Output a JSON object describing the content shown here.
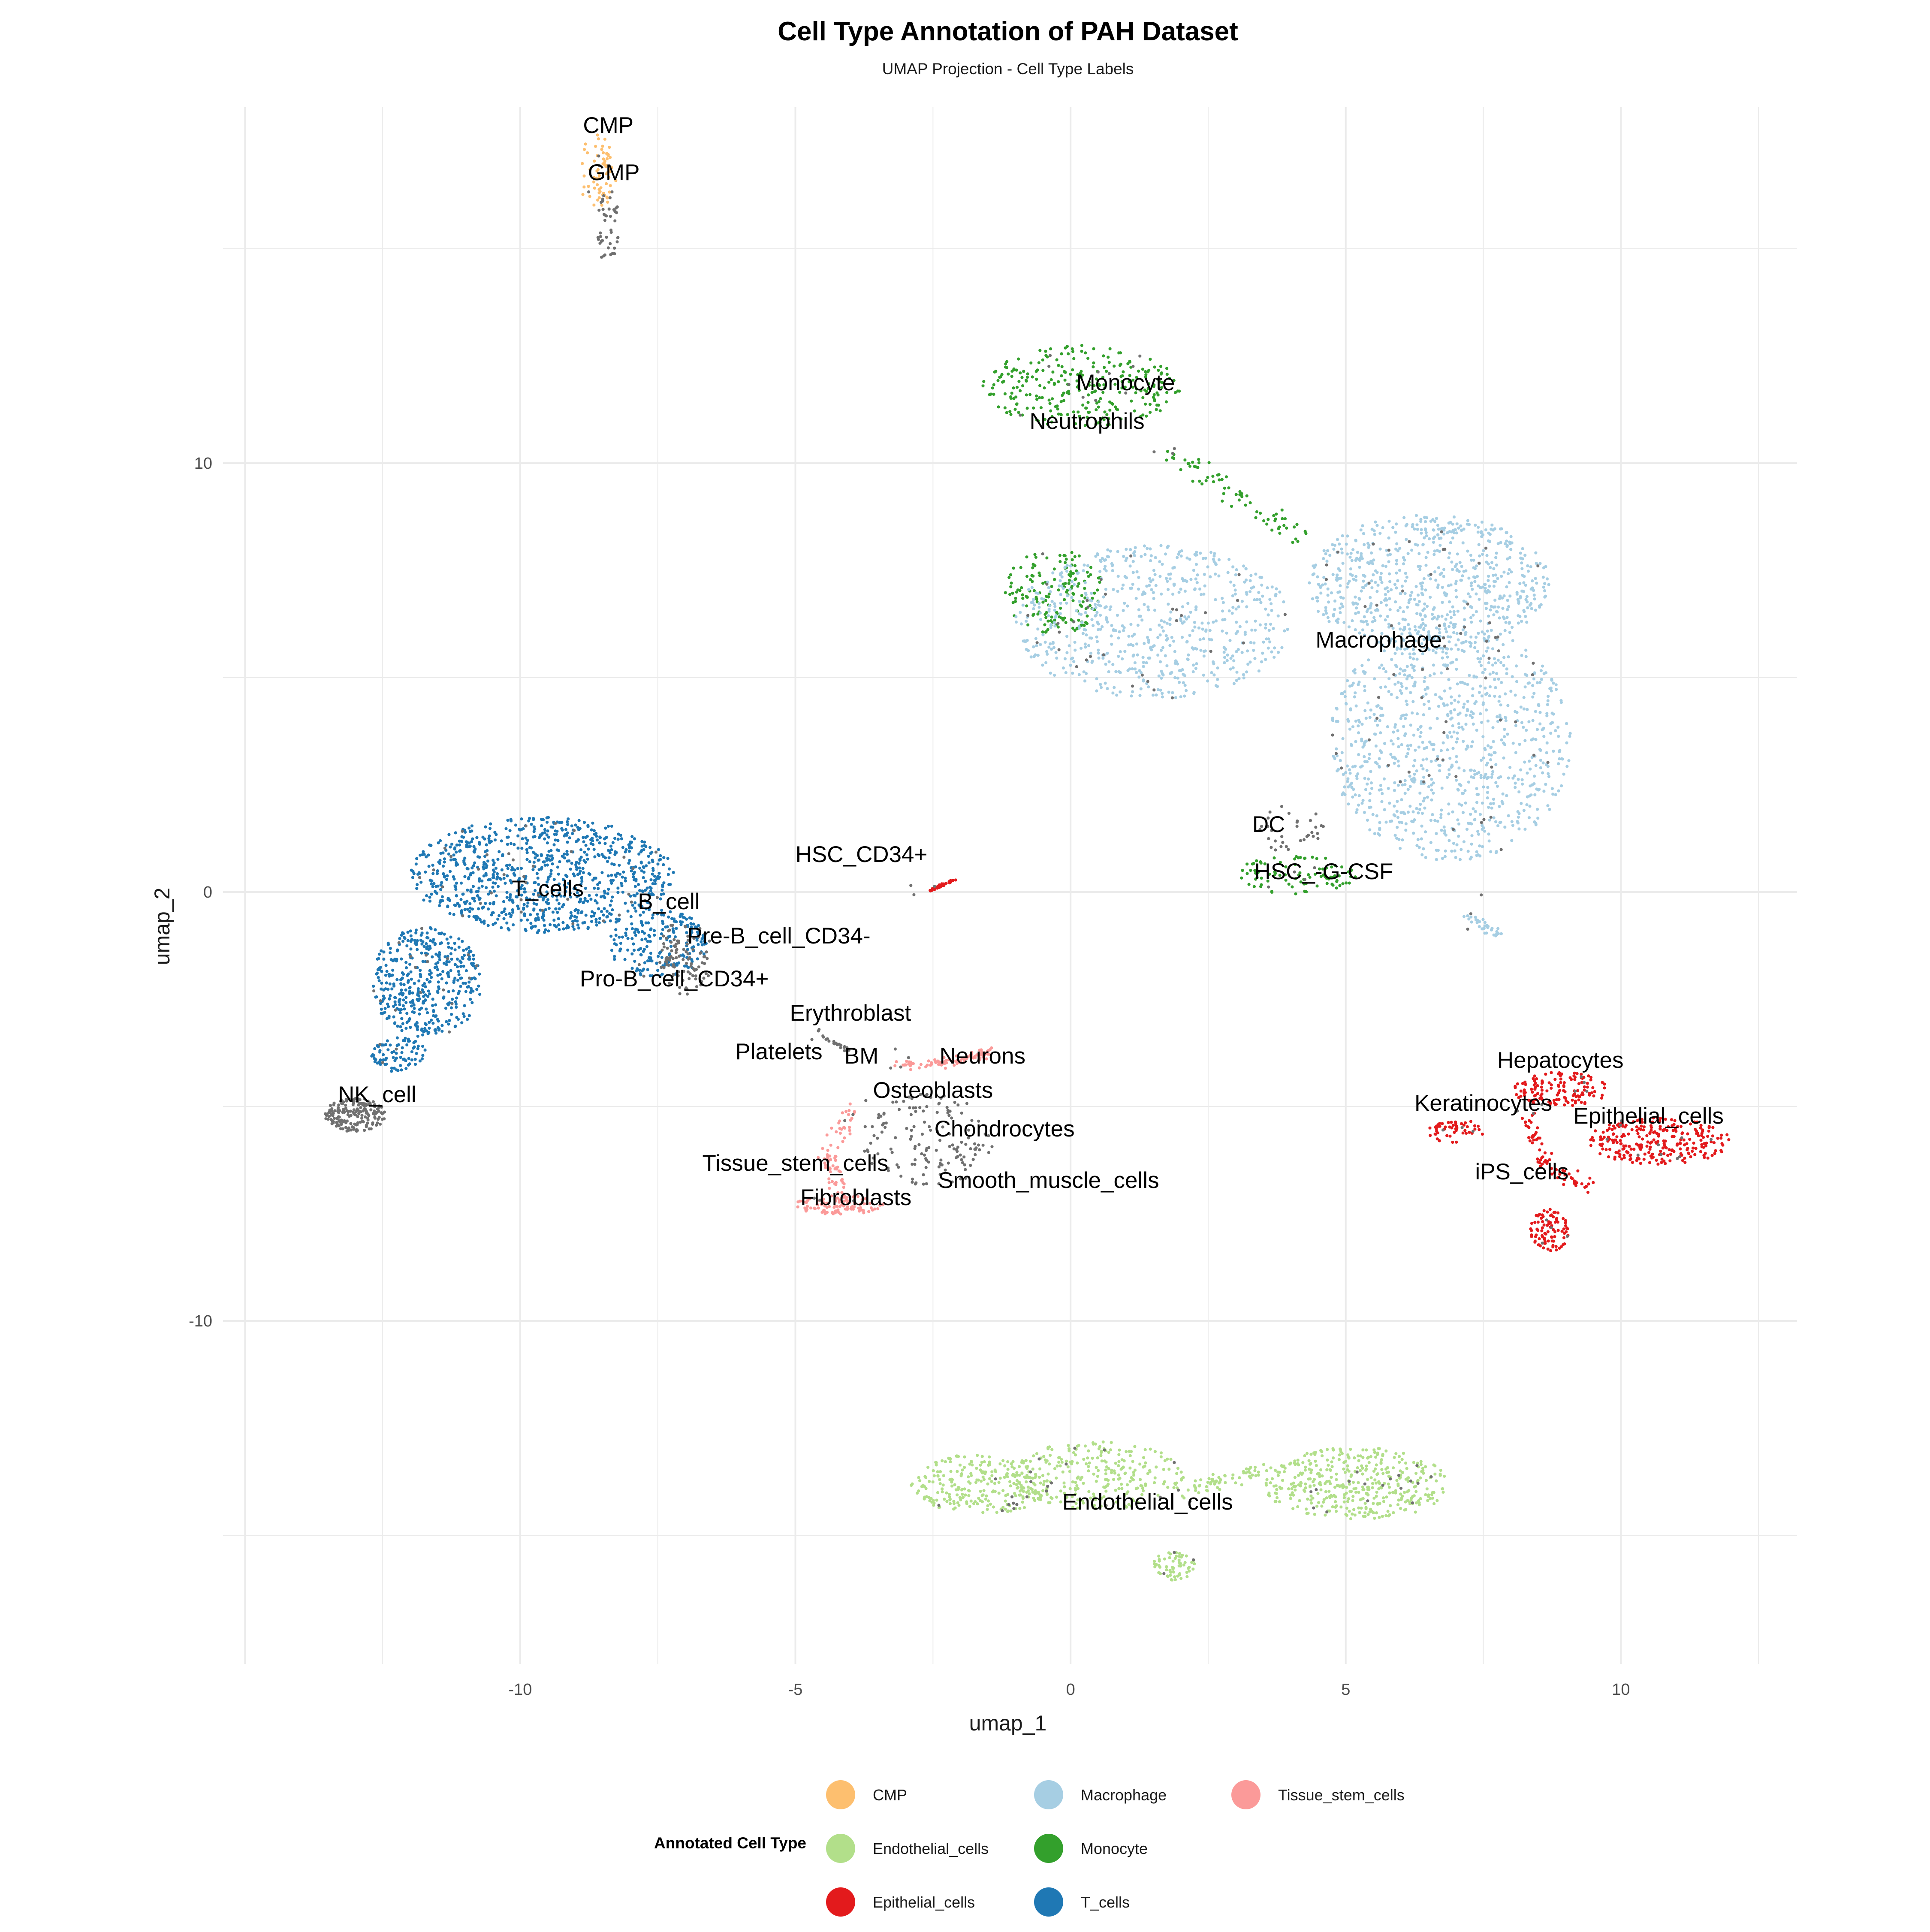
{
  "chart_data": {
    "type": "scatter",
    "title": "Cell Type Annotation of PAH Dataset",
    "subtitle": "UMAP Projection - Cell Type Labels",
    "xlabel": "umap_1",
    "ylabel": "umap_2",
    "xlim": [
      -15.4,
      13.2
    ],
    "ylim": [
      -18.0,
      18.3
    ],
    "x_ticks": [
      -10,
      -5,
      0,
      5,
      10
    ],
    "y_ticks": [
      -10,
      0,
      10
    ],
    "grid": true,
    "legend_title": "Annotated Cell Type",
    "legend_position": "bottom",
    "legend": [
      {
        "label": "CMP",
        "color": "#FDBF6F"
      },
      {
        "label": "Endothelial_cells",
        "color": "#B2DF8A"
      },
      {
        "label": "Epithelial_cells",
        "color": "#E31A1C"
      },
      {
        "label": "Macrophage",
        "color": "#A6CEE3"
      },
      {
        "label": "Monocyte",
        "color": "#33A02C"
      },
      {
        "label": "T_cells",
        "color": "#1F78B4"
      },
      {
        "label": "Tissue_stem_cells",
        "color": "#FB9A99"
      }
    ],
    "other_color": "#707070",
    "clusters": [
      {
        "color": "#FDBF6F",
        "shape": "ellipse",
        "center": [
          -8.6,
          16.8
        ],
        "radius": [
          0.35,
          0.9
        ],
        "n": 70
      },
      {
        "color": "#707070",
        "shape": "ellipse",
        "center": [
          -8.4,
          15.5
        ],
        "radius": [
          0.2,
          0.9
        ],
        "n": 40
      },
      {
        "color": "#33A02C",
        "shape": "ellipse",
        "center": [
          0.2,
          11.8
        ],
        "radius": [
          1.8,
          0.95
        ],
        "n": 280
      },
      {
        "color": "#33A02C",
        "shape": "path",
        "points": [
          [
            1.8,
            10.2
          ],
          [
            3.2,
            9.2
          ],
          [
            4.2,
            8.2
          ]
        ],
        "spread": 0.25,
        "n": 70
      },
      {
        "color": "#33A02C",
        "shape": "ellipse",
        "center": [
          -0.3,
          7.0
        ],
        "radius": [
          0.9,
          1.0
        ],
        "n": 160
      },
      {
        "color": "#A6CEE3",
        "shape": "ellipse",
        "center": [
          1.5,
          6.3
        ],
        "radius": [
          2.5,
          1.8
        ],
        "n": 650
      },
      {
        "color": "#A6CEE3",
        "shape": "ellipse",
        "center": [
          6.5,
          7.2
        ],
        "radius": [
          2.2,
          1.6
        ],
        "n": 700
      },
      {
        "color": "#A6CEE3",
        "shape": "ellipse",
        "center": [
          6.9,
          3.5
        ],
        "radius": [
          2.2,
          2.8
        ],
        "n": 900
      },
      {
        "color": "#A6CEE3",
        "shape": "path",
        "points": [
          [
            7.2,
            -0.5
          ],
          [
            7.8,
            -1.0
          ]
        ],
        "spread": 0.12,
        "n": 35
      },
      {
        "color": "#33A02C",
        "shape": "ellipse",
        "center": [
          4.1,
          0.4
        ],
        "radius": [
          1.1,
          0.45
        ],
        "n": 90
      },
      {
        "color": "#707070",
        "shape": "ellipse",
        "center": [
          4.0,
          1.5
        ],
        "radius": [
          0.6,
          0.6
        ],
        "n": 30
      },
      {
        "color": "#1F78B4",
        "shape": "ellipse",
        "center": [
          -9.6,
          0.4
        ],
        "radius": [
          2.4,
          1.35
        ],
        "n": 900
      },
      {
        "color": "#1F78B4",
        "shape": "ellipse",
        "center": [
          -11.7,
          -2.1
        ],
        "radius": [
          1.0,
          1.3
        ],
        "n": 420
      },
      {
        "color": "#1F78B4",
        "shape": "ellipse",
        "center": [
          -7.5,
          -1.2
        ],
        "radius": [
          0.9,
          0.8
        ],
        "n": 200
      },
      {
        "color": "#1F78B4",
        "shape": "ellipse",
        "center": [
          -12.2,
          -3.8
        ],
        "radius": [
          0.5,
          0.4
        ],
        "n": 80
      },
      {
        "color": "#707070",
        "shape": "ellipse",
        "center": [
          -13.0,
          -5.2
        ],
        "radius": [
          0.55,
          0.4
        ],
        "n": 170
      },
      {
        "color": "#707070",
        "shape": "ellipse",
        "center": [
          -7.0,
          -1.5
        ],
        "radius": [
          0.5,
          0.9
        ],
        "n": 90
      },
      {
        "color": "#E31A1C",
        "shape": "path",
        "points": [
          [
            -2.6,
            0.0
          ],
          [
            -2.1,
            0.3
          ]
        ],
        "spread": 0.03,
        "n": 45
      },
      {
        "color": "#FB9A99",
        "shape": "path",
        "points": [
          [
            -3.1,
            -4.0
          ],
          [
            -2.2,
            -4.0
          ],
          [
            -1.4,
            -3.7
          ]
        ],
        "spread": 0.12,
        "n": 90
      },
      {
        "color": "#FB9A99",
        "shape": "ellipse",
        "center": [
          -4.2,
          -7.3
        ],
        "radius": [
          0.8,
          0.22
        ],
        "n": 110
      },
      {
        "color": "#FB9A99",
        "shape": "path",
        "points": [
          [
            -3.9,
            -5.0
          ],
          [
            -4.4,
            -6.2
          ],
          [
            -4.2,
            -7.0
          ]
        ],
        "spread": 0.18,
        "n": 70
      },
      {
        "color": "#707070",
        "shape": "ellipse",
        "center": [
          -2.6,
          -5.8
        ],
        "radius": [
          1.2,
          1.1
        ],
        "n": 140
      },
      {
        "color": "#707070",
        "shape": "path",
        "points": [
          [
            -4.6,
            -3.3
          ],
          [
            -4.0,
            -3.7
          ]
        ],
        "spread": 0.05,
        "n": 20
      },
      {
        "color": "#E31A1C",
        "shape": "ellipse",
        "center": [
          8.9,
          -4.6
        ],
        "radius": [
          0.9,
          0.4
        ],
        "n": 130
      },
      {
        "color": "#E31A1C",
        "shape": "ellipse",
        "center": [
          10.7,
          -5.8
        ],
        "radius": [
          1.3,
          0.55
        ],
        "n": 260
      },
      {
        "color": "#E31A1C",
        "shape": "ellipse",
        "center": [
          7.0,
          -5.6
        ],
        "radius": [
          0.5,
          0.3
        ],
        "n": 50
      },
      {
        "color": "#E31A1C",
        "shape": "ellipse",
        "center": [
          8.7,
          -7.9
        ],
        "radius": [
          0.35,
          0.5
        ],
        "n": 90
      },
      {
        "color": "#E31A1C",
        "shape": "path",
        "points": [
          [
            8.3,
            -5.2
          ],
          [
            8.6,
            -6.3
          ],
          [
            9.4,
            -6.9
          ]
        ],
        "spread": 0.18,
        "n": 70
      },
      {
        "color": "#B2DF8A",
        "shape": "ellipse",
        "center": [
          -1.6,
          -13.8
        ],
        "radius": [
          1.3,
          0.7
        ],
        "n": 260
      },
      {
        "color": "#B2DF8A",
        "shape": "ellipse",
        "center": [
          0.5,
          -13.6
        ],
        "radius": [
          1.6,
          0.8
        ],
        "n": 260
      },
      {
        "color": "#B2DF8A",
        "shape": "ellipse",
        "center": [
          5.2,
          -13.8
        ],
        "radius": [
          1.7,
          0.85
        ],
        "n": 420
      },
      {
        "color": "#B2DF8A",
        "shape": "path",
        "points": [
          [
            2.0,
            -14.0
          ],
          [
            3.5,
            -13.5
          ]
        ],
        "spread": 0.2,
        "n": 60
      },
      {
        "color": "#B2DF8A",
        "shape": "ellipse",
        "center": [
          1.9,
          -15.7
        ],
        "radius": [
          0.4,
          0.35
        ],
        "n": 60
      }
    ],
    "annotations": [
      {
        "text": "CMP",
        "x": -8.4,
        "y": 17.7
      },
      {
        "text": "GMP",
        "x": -8.3,
        "y": 16.6
      },
      {
        "text": "Monocyte",
        "x": 1.0,
        "y": 11.7
      },
      {
        "text": "Neutrophils",
        "x": 0.3,
        "y": 10.8
      },
      {
        "text": "Macrophage",
        "x": 5.6,
        "y": 5.7
      },
      {
        "text": "DC",
        "x": 3.6,
        "y": 1.4
      },
      {
        "text": "HSC_-G-CSF",
        "x": 4.6,
        "y": 0.3
      },
      {
        "text": "HSC_CD34+",
        "x": -3.8,
        "y": 0.7
      },
      {
        "text": "T_cells",
        "x": -9.5,
        "y": -0.1
      },
      {
        "text": "B_cell",
        "x": -7.3,
        "y": -0.4
      },
      {
        "text": "Pre-B_cell_CD34-",
        "x": -5.3,
        "y": -1.2
      },
      {
        "text": "Pro-B_cell_CD34+",
        "x": -7.2,
        "y": -2.2
      },
      {
        "text": "Erythroblast",
        "x": -4.0,
        "y": -3.0
      },
      {
        "text": "Platelets",
        "x": -5.3,
        "y": -3.9
      },
      {
        "text": "BM",
        "x": -3.8,
        "y": -4.0
      },
      {
        "text": "Neurons",
        "x": -1.6,
        "y": -4.0
      },
      {
        "text": "Osteoblasts",
        "x": -2.5,
        "y": -4.8
      },
      {
        "text": "Chondrocytes",
        "x": -1.2,
        "y": -5.7
      },
      {
        "text": "Tissue_stem_cells",
        "x": -5.0,
        "y": -6.5
      },
      {
        "text": "Smooth_muscle_cells",
        "x": -0.4,
        "y": -6.9
      },
      {
        "text": "Fibroblasts",
        "x": -3.9,
        "y": -7.3
      },
      {
        "text": "NK_cell",
        "x": -12.6,
        "y": -4.9
      },
      {
        "text": "Hepatocytes",
        "x": 8.9,
        "y": -4.1
      },
      {
        "text": "Keratinocytes",
        "x": 7.5,
        "y": -5.1
      },
      {
        "text": "Epithelial_cells",
        "x": 10.5,
        "y": -5.4
      },
      {
        "text": "iPS_cells",
        "x": 8.2,
        "y": -6.7
      },
      {
        "text": "Endothelial_cells",
        "x": 1.4,
        "y": -14.4
      }
    ]
  }
}
